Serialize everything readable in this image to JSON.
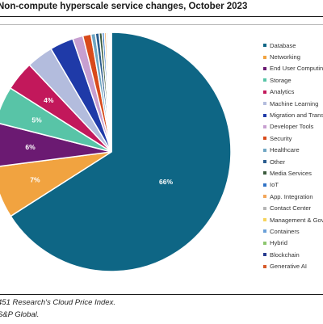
{
  "chart_data": {
    "type": "pie",
    "title": "Non-compute hyperscale service changes, October 2023",
    "slices": [
      {
        "name": "Database",
        "value": 66,
        "label": "66%",
        "color": "#0e6685"
      },
      {
        "name": "Networking",
        "value": 7,
        "label": "7%",
        "color": "#f1a340"
      },
      {
        "name": "End User Computing",
        "value": 6,
        "label": "6%",
        "color": "#6b1a72"
      },
      {
        "name": "Storage",
        "value": 5,
        "label": "5%",
        "color": "#58c4a7"
      },
      {
        "name": "Analytics",
        "value": 4,
        "label": "4%",
        "color": "#c2185b"
      },
      {
        "name": "Machine Learning",
        "value": 3.6,
        "label": "",
        "color": "#b3bcdd"
      },
      {
        "name": "Migration and Transfer",
        "value": 3.2,
        "label": "",
        "color": "#1f3aa8"
      },
      {
        "name": "Developer Tools",
        "value": 1.4,
        "label": "",
        "color": "#c79fd0"
      },
      {
        "name": "Security",
        "value": 1.1,
        "label": "",
        "color": "#d84a1b"
      },
      {
        "name": "Healthcare",
        "value": 0.6,
        "label": "",
        "color": "#6fa6c3"
      },
      {
        "name": "Other",
        "value": 0.5,
        "label": "",
        "color": "#2a5c8e"
      },
      {
        "name": "Media Services",
        "value": 0.4,
        "label": "",
        "color": "#3a5a3c"
      },
      {
        "name": "IoT",
        "value": 0.3,
        "label": "",
        "color": "#2f72c6"
      },
      {
        "name": "App. Integration",
        "value": 0.25,
        "label": "",
        "color": "#f2a65a"
      },
      {
        "name": "Contact Center",
        "value": 0.2,
        "label": "",
        "color": "#b5b5b5"
      },
      {
        "name": "Management & Governance",
        "value": 0.15,
        "label": "",
        "color": "#f6d35c"
      },
      {
        "name": "Containers",
        "value": 0.12,
        "label": "",
        "color": "#6aa0d8"
      },
      {
        "name": "Hybrid",
        "value": 0.1,
        "label": "",
        "color": "#8cc66e"
      },
      {
        "name": "Blockchain",
        "value": 0.08,
        "label": "",
        "color": "#273b8f"
      },
      {
        "name": "Generative AI",
        "value": 0.05,
        "label": "",
        "color": "#d65a2a"
      }
    ],
    "legend_position": "right"
  },
  "footer": {
    "source": "451 Research's Cloud Price Index.",
    "credit": "S&P Global."
  }
}
